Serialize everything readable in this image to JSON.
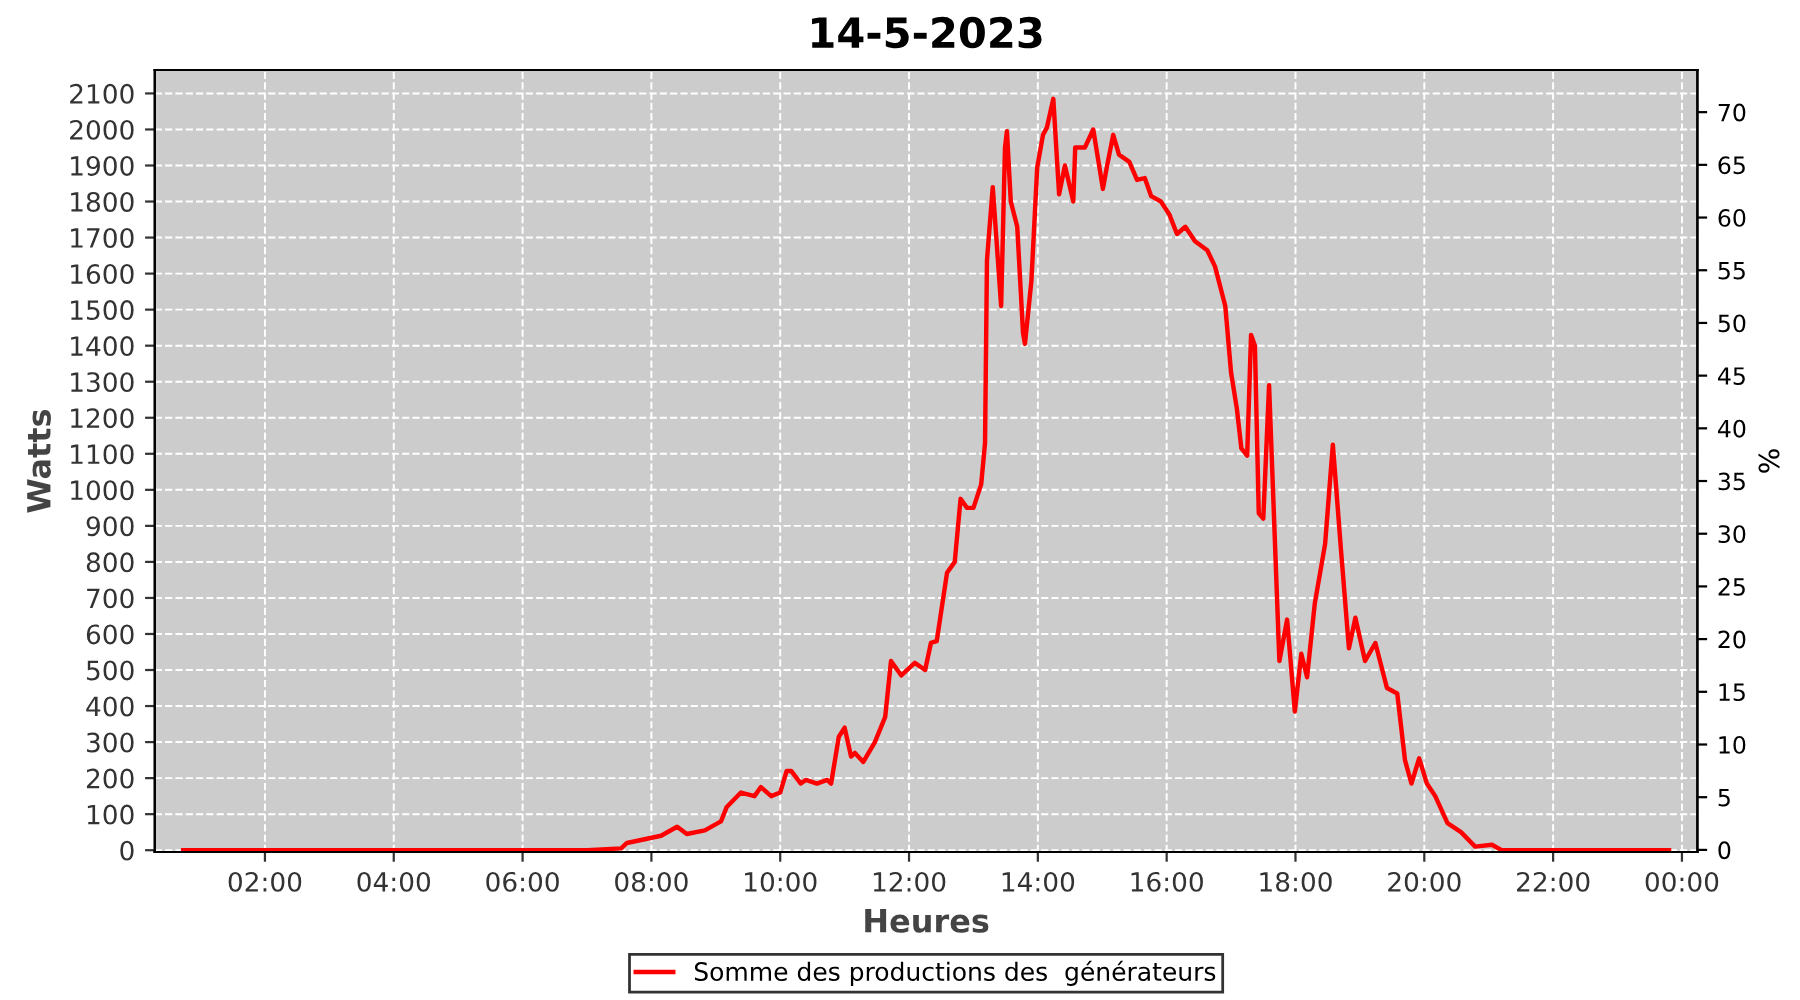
{
  "chart_data": {
    "type": "line",
    "title": "14-5-2023",
    "xlabel": "Heures",
    "ylabel": "Watts",
    "y2label": "%",
    "xlim": [
      0.29,
      24.24
    ],
    "xticks": [
      {
        "value": 2,
        "label": "02:00"
      },
      {
        "value": 4,
        "label": "04:00"
      },
      {
        "value": 6,
        "label": "06:00"
      },
      {
        "value": 8,
        "label": "08:00"
      },
      {
        "value": 10,
        "label": "10:00"
      },
      {
        "value": 12,
        "label": "12:00"
      },
      {
        "value": 14,
        "label": "14:00"
      },
      {
        "value": 16,
        "label": "16:00"
      },
      {
        "value": 18,
        "label": "18:00"
      },
      {
        "value": 20,
        "label": "20:00"
      },
      {
        "value": 22,
        "label": "22:00"
      },
      {
        "value": 24,
        "label": "00:00"
      }
    ],
    "ylim": [
      -5,
      2165
    ],
    "yticks": [
      0,
      100,
      200,
      300,
      400,
      500,
      600,
      700,
      800,
      900,
      1000,
      1100,
      1200,
      1300,
      1400,
      1500,
      1600,
      1700,
      1800,
      1900,
      2000,
      2100
    ],
    "y2lim": [
      -0.2,
      74
    ],
    "y2ticks": [
      0,
      5,
      10,
      15,
      20,
      25,
      30,
      35,
      40,
      45,
      50,
      55,
      60,
      65,
      70
    ],
    "grid": true,
    "legend": "bottom",
    "line_style": "solid",
    "series": [
      {
        "name": "Somme des productions des  générateurs",
        "color": "#ff0000",
        "x": [
          0.73,
          4.0,
          7.0,
          7.53,
          7.62,
          8.15,
          8.4,
          8.55,
          8.83,
          9.08,
          9.17,
          9.39,
          9.6,
          9.7,
          9.86,
          10.0,
          10.1,
          10.17,
          10.32,
          10.4,
          10.57,
          10.73,
          10.79,
          10.91,
          11.0,
          11.1,
          11.16,
          11.29,
          11.47,
          11.63,
          11.72,
          11.88,
          12.09,
          12.25,
          12.34,
          12.43,
          12.59,
          12.71,
          12.8,
          12.9,
          13.0,
          13.12,
          13.18,
          13.21,
          13.3,
          13.43,
          13.49,
          13.52,
          13.58,
          13.68,
          13.77,
          13.8,
          13.9,
          13.99,
          14.08,
          14.14,
          14.24,
          14.33,
          14.42,
          14.55,
          14.58,
          14.73,
          14.86,
          15.01,
          15.07,
          15.17,
          15.26,
          15.42,
          15.54,
          15.66,
          15.76,
          15.91,
          16.04,
          16.16,
          16.29,
          16.44,
          16.63,
          16.75,
          16.91,
          17.0,
          17.09,
          17.16,
          17.25,
          17.31,
          17.37,
          17.43,
          17.5,
          17.59,
          17.75,
          17.87,
          17.99,
          18.09,
          18.18,
          18.3,
          18.46,
          18.58,
          18.71,
          18.83,
          18.93,
          19.08,
          19.24,
          19.42,
          19.58,
          19.7,
          19.8,
          19.92,
          20.04,
          20.17,
          20.36,
          20.57,
          20.79,
          21.05,
          21.2,
          23.8
        ],
        "values": [
          0,
          0,
          0,
          5,
          20,
          40,
          65,
          45,
          55,
          80,
          120,
          160,
          150,
          175,
          150,
          160,
          220,
          220,
          185,
          195,
          185,
          195,
          185,
          315,
          340,
          260,
          270,
          245,
          300,
          370,
          525,
          485,
          520,
          500,
          575,
          580,
          770,
          800,
          975,
          950,
          950,
          1015,
          1130,
          1637,
          1840,
          1510,
          1950,
          1995,
          1800,
          1730,
          1435,
          1405,
          1580,
          1895,
          1985,
          2005,
          2085,
          1820,
          1900,
          1800,
          1950,
          1950,
          2000,
          1835,
          1895,
          1985,
          1930,
          1910,
          1860,
          1865,
          1815,
          1800,
          1765,
          1710,
          1730,
          1690,
          1665,
          1620,
          1510,
          1325,
          1225,
          1115,
          1095,
          1430,
          1400,
          935,
          920,
          1290,
          525,
          640,
          385,
          545,
          480,
          685,
          850,
          1125,
          825,
          560,
          645,
          525,
          575,
          450,
          435,
          250,
          185,
          255,
          185,
          150,
          75,
          50,
          10,
          15,
          0,
          0
        ]
      }
    ]
  }
}
